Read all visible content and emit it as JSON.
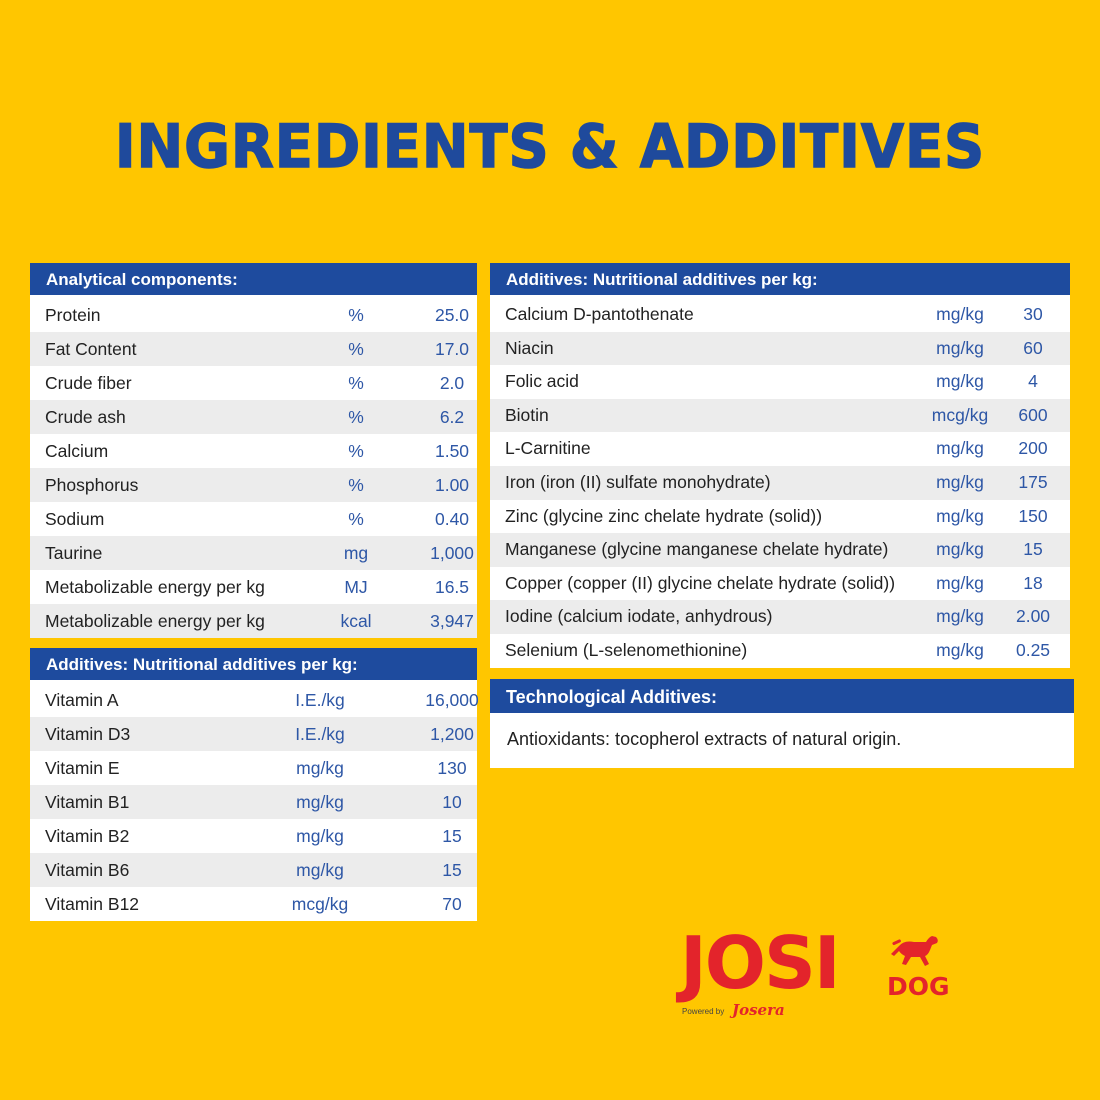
{
  "title": "INGREDIENTS & ADDITIVES",
  "analytical": {
    "header": "Analytical components:",
    "rows": [
      {
        "name": "Protein",
        "unit": "%",
        "value": "25.0"
      },
      {
        "name": "Fat Content",
        "unit": "%",
        "value": "17.0"
      },
      {
        "name": "Crude fiber",
        "unit": "%",
        "value": "2.0"
      },
      {
        "name": "Crude ash",
        "unit": "%",
        "value": "6.2"
      },
      {
        "name": "Calcium",
        "unit": "%",
        "value": "1.50"
      },
      {
        "name": "Phosphorus",
        "unit": "%",
        "value": "1.00"
      },
      {
        "name": "Sodium",
        "unit": "%",
        "value": "0.40"
      },
      {
        "name": "Taurine",
        "unit": "mg",
        "value": "1,000"
      },
      {
        "name": "Metabolizable energy per kg",
        "unit": "MJ",
        "value": "16.5"
      },
      {
        "name": "Metabolizable energy per kg",
        "unit": "kcal",
        "value": "3,947"
      }
    ]
  },
  "vitamins": {
    "header": "Additives: Nutritional additives per kg:",
    "rows": [
      {
        "name": "Vitamin A",
        "unit": "I.E./kg",
        "value": "16,000"
      },
      {
        "name": "Vitamin D3",
        "unit": "I.E./kg",
        "value": "1,200"
      },
      {
        "name": "Vitamin E",
        "unit": "mg/kg",
        "value": "130"
      },
      {
        "name": "Vitamin B1",
        "unit": "mg/kg",
        "value": "10"
      },
      {
        "name": "Vitamin B2",
        "unit": "mg/kg",
        "value": "15"
      },
      {
        "name": "Vitamin B6",
        "unit": "mg/kg",
        "value": "15"
      },
      {
        "name": "Vitamin B12",
        "unit": "mcg/kg",
        "value": "70"
      }
    ]
  },
  "minerals": {
    "header": "Additives: Nutritional additives per kg:",
    "rows": [
      {
        "name": "Calcium D-pantothenate",
        "unit": "mg/kg",
        "value": "30"
      },
      {
        "name": "Niacin",
        "unit": "mg/kg",
        "value": "60"
      },
      {
        "name": "Folic acid",
        "unit": "mg/kg",
        "value": "4"
      },
      {
        "name": "Biotin",
        "unit": "mcg/kg",
        "value": "600"
      },
      {
        "name": "L-Carnitine",
        "unit": "mg/kg",
        "value": "200"
      },
      {
        "name": "Iron (iron (II) sulfate monohydrate)",
        "unit": "mg/kg",
        "value": "175"
      },
      {
        "name": "Zinc (glycine zinc chelate hydrate (solid))",
        "unit": "mg/kg",
        "value": "150"
      },
      {
        "name": "Manganese (glycine manganese chelate hydrate)",
        "unit": "mg/kg",
        "value": "15"
      },
      {
        "name": "Copper (copper (II) glycine chelate hydrate (solid))",
        "unit": "mg/kg",
        "value": "18"
      },
      {
        "name": "Iodine (calcium iodate, anhydrous)",
        "unit": "mg/kg",
        "value": "2.00"
      },
      {
        "name": "Selenium (L-selenomethionine)",
        "unit": "mg/kg",
        "value": "0.25"
      }
    ]
  },
  "technological": {
    "header": "Technological Additives:",
    "text": "Antioxidants: tocopherol extracts of natural origin."
  },
  "logo": {
    "brand": "JOSI",
    "sub": "DOG",
    "powered_by": "Powered by",
    "maker": "Josera"
  },
  "colors": {
    "background": "#FFC600",
    "header_blue": "#1E4B9E",
    "title_blue": "#1F4A9C",
    "unit_blue": "#2E57A6",
    "brand_red": "#E3242B"
  },
  "icons": {
    "logo_dog": "running-dog-icon"
  }
}
